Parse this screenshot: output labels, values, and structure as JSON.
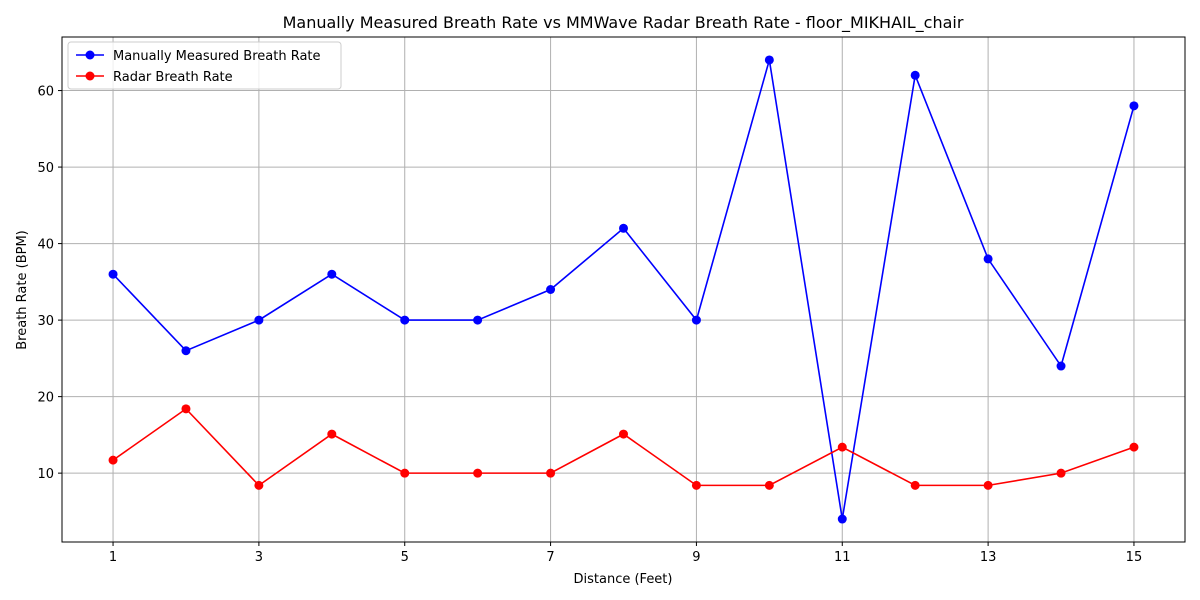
{
  "chart_data": {
    "type": "line",
    "title": "Manually Measured Breath Rate vs MMWave Radar Breath Rate - floor_MIKHAIL_chair",
    "xlabel": "Distance (Feet)",
    "ylabel": "Breath Rate (BPM)",
    "x": [
      1,
      2,
      3,
      4,
      5,
      6,
      7,
      8,
      9,
      10,
      11,
      12,
      13,
      14,
      15
    ],
    "xlim": [
      0.3,
      15.7
    ],
    "ylim": [
      1,
      67
    ],
    "xticks": [
      1,
      3,
      5,
      7,
      9,
      11,
      13,
      15
    ],
    "yticks": [
      10,
      20,
      30,
      40,
      50,
      60
    ],
    "grid": true,
    "legend_position": "upper-left",
    "series": [
      {
        "name": "Manually Measured Breath Rate",
        "color": "#0000ff",
        "values": [
          36,
          26,
          30,
          36,
          30,
          30,
          34,
          42,
          30,
          64,
          4,
          62,
          38,
          24,
          58
        ]
      },
      {
        "name": "Radar Breath Rate",
        "color": "#ff0000",
        "values": [
          11.7,
          18.4,
          8.4,
          15.1,
          10,
          10,
          10,
          15.1,
          8.4,
          8.4,
          13.4,
          8.4,
          8.4,
          10,
          13.4
        ]
      }
    ]
  }
}
